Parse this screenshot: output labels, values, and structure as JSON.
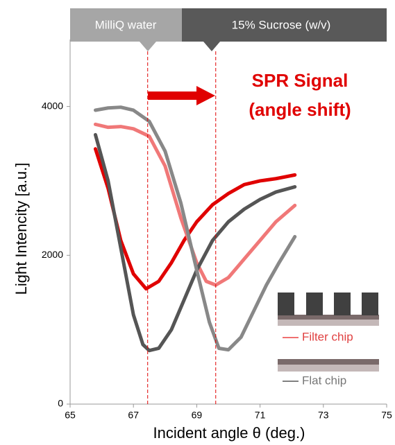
{
  "chart_data": {
    "type": "line",
    "header": [
      "MilliQ water",
      "15% Sucrose (w/v)"
    ],
    "annotation": [
      "SPR Signal",
      "(angle shift)"
    ],
    "vlines": [
      67.45,
      69.6
    ],
    "xlabel": "Incident angle θ (deg.)",
    "ylabel": "Light Intencity [a.u.]",
    "xlim": [
      65,
      75
    ],
    "xticks": [
      65,
      67,
      69,
      71,
      73,
      75
    ],
    "ylim": [
      0,
      4900
    ],
    "yticks": [
      0,
      2000,
      4000
    ],
    "legend": [
      {
        "label": "Filter chip",
        "color": "#f07070"
      },
      {
        "label": "Flat chip",
        "color": "#808080"
      }
    ],
    "series": [
      {
        "color": "#e00000",
        "x": [
          65.8,
          66.2,
          66.6,
          67.0,
          67.4,
          67.8,
          68.2,
          68.6,
          69.0,
          69.5,
          70.0,
          70.5,
          71.0,
          71.5,
          72.1
        ],
        "values": [
          3430,
          2900,
          2200,
          1750,
          1550,
          1650,
          1900,
          2200,
          2450,
          2680,
          2830,
          2950,
          3000,
          3030,
          3080
        ]
      },
      {
        "color": "#f07878",
        "x": [
          65.8,
          66.2,
          66.6,
          67.0,
          67.5,
          68.0,
          68.5,
          69.0,
          69.3,
          69.6,
          70.0,
          70.5,
          71.0,
          71.5,
          72.1
        ],
        "values": [
          3760,
          3720,
          3730,
          3700,
          3600,
          3200,
          2500,
          1900,
          1650,
          1600,
          1700,
          1950,
          2200,
          2450,
          2670
        ]
      },
      {
        "color": "#555555",
        "x": [
          65.8,
          66.2,
          66.6,
          67.0,
          67.3,
          67.5,
          67.8,
          68.2,
          68.6,
          69.0,
          69.5,
          70.0,
          70.5,
          71.0,
          71.5,
          72.1
        ],
        "values": [
          3620,
          3000,
          2100,
          1200,
          800,
          720,
          750,
          1000,
          1400,
          1800,
          2200,
          2450,
          2620,
          2750,
          2850,
          2920
        ]
      },
      {
        "color": "#888888",
        "x": [
          65.8,
          66.2,
          66.6,
          67.0,
          67.5,
          68.0,
          68.5,
          69.0,
          69.4,
          69.7,
          70.0,
          70.4,
          70.8,
          71.2,
          71.6,
          72.1
        ],
        "values": [
          3950,
          3980,
          3990,
          3950,
          3800,
          3400,
          2700,
          1800,
          1100,
          750,
          730,
          900,
          1250,
          1600,
          1900,
          2250
        ]
      }
    ]
  }
}
